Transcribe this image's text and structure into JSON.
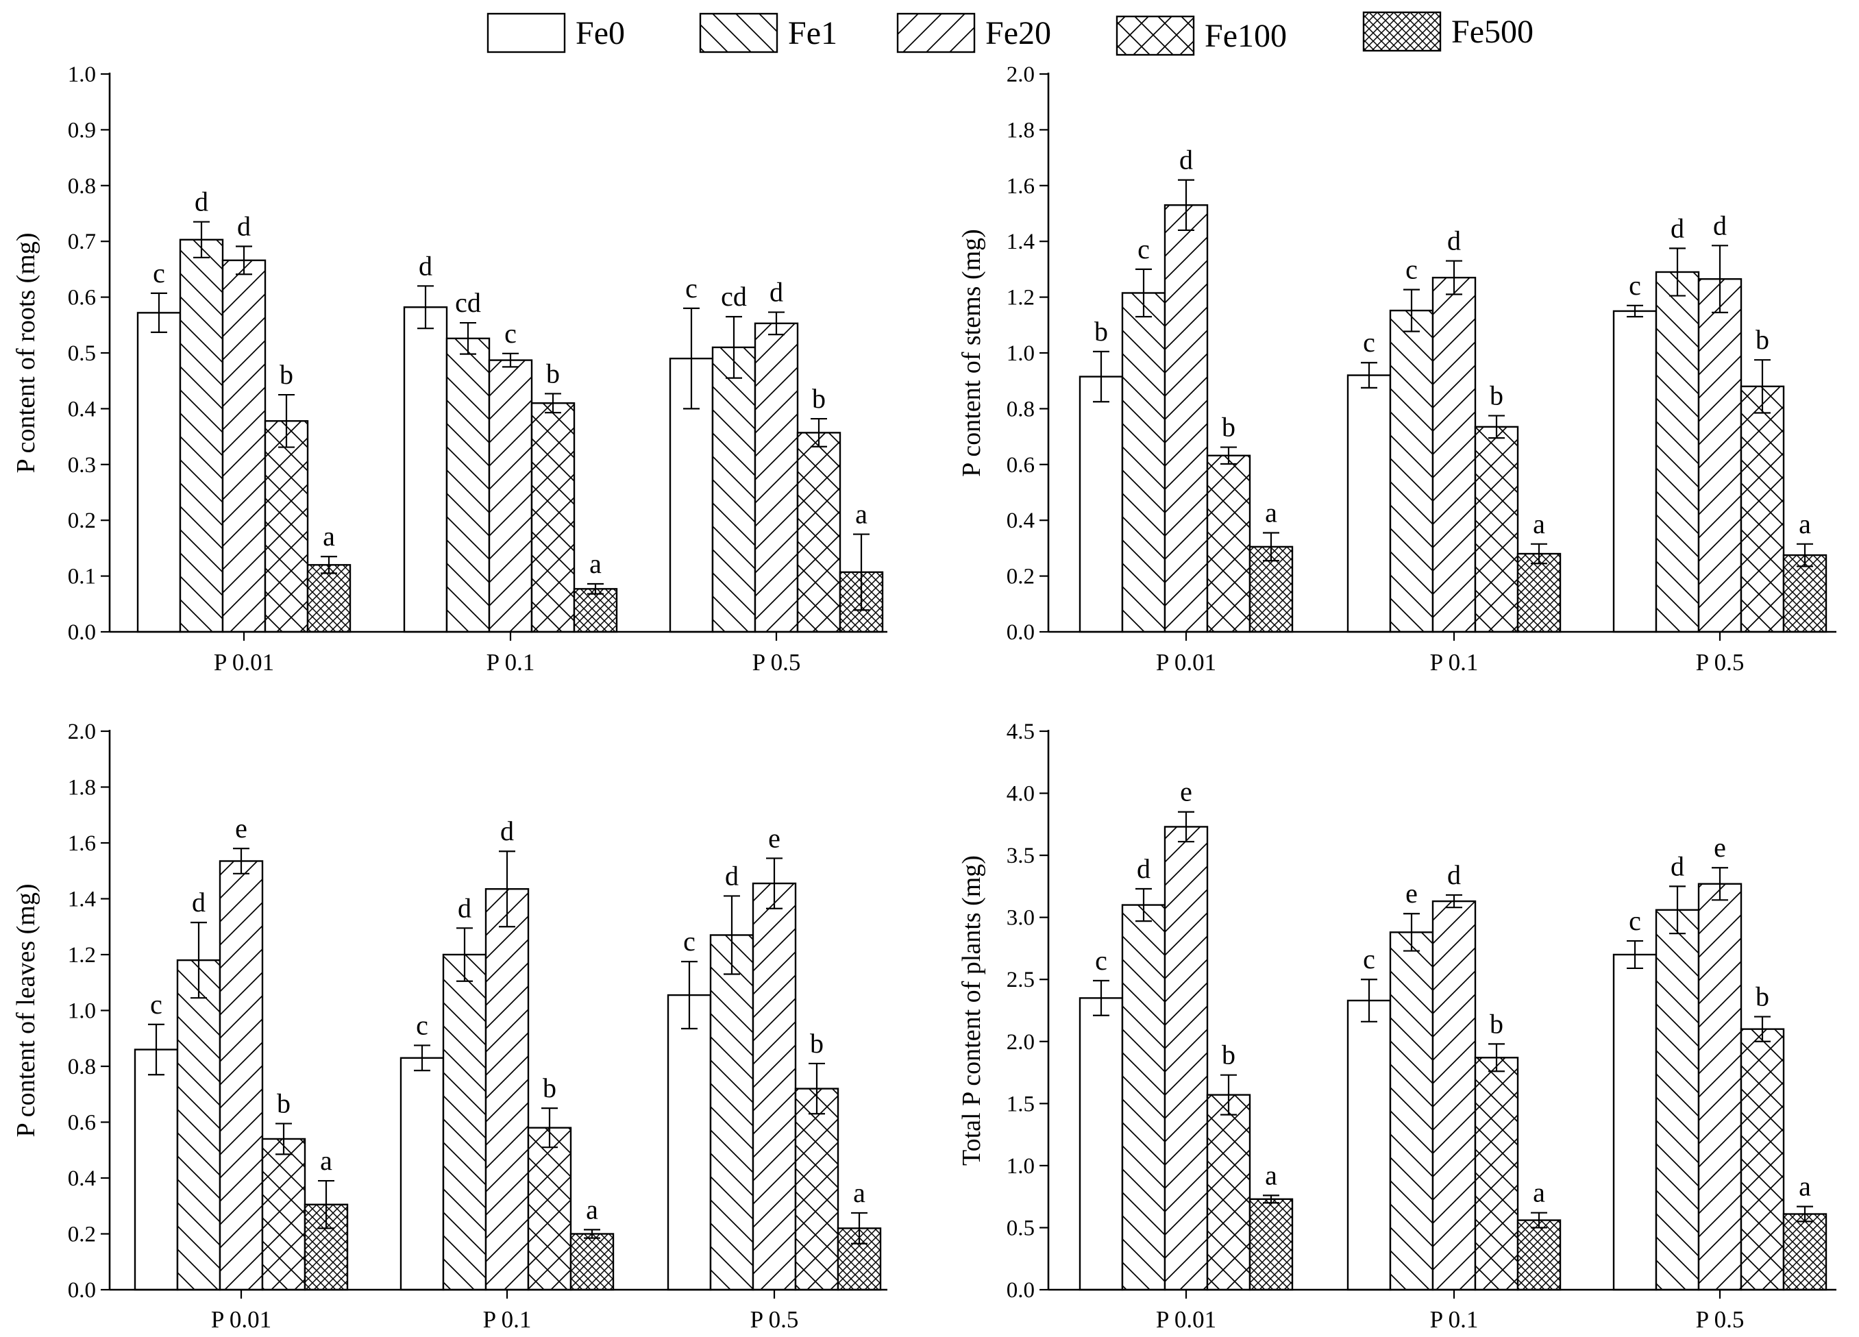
{
  "legend": [
    {
      "name": "Fe0",
      "pattern": "pat-none"
    },
    {
      "name": "Fe1",
      "pattern": "pat-back"
    },
    {
      "name": "Fe20",
      "pattern": "pat-fwd"
    },
    {
      "name": "Fe100",
      "pattern": "pat-cross"
    },
    {
      "name": "Fe500",
      "pattern": "pat-dense"
    }
  ],
  "chart_data": [
    {
      "type": "bar",
      "title": "",
      "xlabel": "",
      "ylabel": "P content of roots (mg)",
      "ylim": [
        0,
        1.0
      ],
      "yticks": [
        0.0,
        0.1,
        0.2,
        0.3,
        0.4,
        0.5,
        0.6,
        0.7,
        0.8,
        0.9,
        1.0
      ],
      "tick_decimals": 1,
      "categories": [
        "P 0.01",
        "P 0.1",
        "P 0.5"
      ],
      "series": [
        {
          "name": "Fe0",
          "values": [
            0.572,
            0.582,
            0.49
          ],
          "errors": [
            0.035,
            0.038,
            0.09
          ],
          "letters": [
            "c",
            "d",
            "c"
          ]
        },
        {
          "name": "Fe1",
          "values": [
            0.703,
            0.526,
            0.51
          ],
          "errors": [
            0.032,
            0.028,
            0.055
          ],
          "letters": [
            "d",
            "cd",
            "cd"
          ]
        },
        {
          "name": "Fe20",
          "values": [
            0.666,
            0.487,
            0.553
          ],
          "errors": [
            0.025,
            0.012,
            0.02
          ],
          "letters": [
            "d",
            "c",
            "d"
          ]
        },
        {
          "name": "Fe100",
          "values": [
            0.378,
            0.41,
            0.357
          ],
          "errors": [
            0.047,
            0.017,
            0.025
          ],
          "letters": [
            "b",
            "b",
            "b"
          ]
        },
        {
          "name": "Fe500",
          "values": [
            0.12,
            0.077,
            0.107
          ],
          "errors": [
            0.015,
            0.009,
            0.068
          ],
          "letters": [
            "a",
            "a",
            "a"
          ]
        }
      ]
    },
    {
      "type": "bar",
      "title": "",
      "xlabel": "",
      "ylabel": "P content of stems (mg)",
      "ylim": [
        0,
        2.0
      ],
      "yticks": [
        0.0,
        0.2,
        0.4,
        0.6,
        0.8,
        1.0,
        1.2,
        1.4,
        1.6,
        1.8,
        2.0
      ],
      "tick_decimals": 1,
      "categories": [
        "P 0.01",
        "P 0.1",
        "P 0.5"
      ],
      "series": [
        {
          "name": "Fe0",
          "values": [
            0.915,
            0.92,
            1.15
          ],
          "errors": [
            0.09,
            0.045,
            0.02
          ],
          "letters": [
            "b",
            "c",
            "c"
          ]
        },
        {
          "name": "Fe1",
          "values": [
            1.215,
            1.152,
            1.29
          ],
          "errors": [
            0.085,
            0.075,
            0.085
          ],
          "letters": [
            "c",
            "c",
            "d"
          ]
        },
        {
          "name": "Fe20",
          "values": [
            1.53,
            1.27,
            1.265
          ],
          "errors": [
            0.09,
            0.06,
            0.12
          ],
          "letters": [
            "d",
            "d",
            "d"
          ]
        },
        {
          "name": "Fe100",
          "values": [
            0.632,
            0.735,
            0.88
          ],
          "errors": [
            0.03,
            0.04,
            0.095
          ],
          "letters": [
            "b",
            "b",
            "b"
          ]
        },
        {
          "name": "Fe500",
          "values": [
            0.305,
            0.28,
            0.275
          ],
          "errors": [
            0.05,
            0.035,
            0.04
          ],
          "letters": [
            "a",
            "a",
            "a"
          ]
        }
      ]
    },
    {
      "type": "bar",
      "title": "",
      "xlabel": "",
      "ylabel": "P content of leaves (mg)",
      "ylim": [
        0,
        2.0
      ],
      "yticks": [
        0.0,
        0.2,
        0.4,
        0.6,
        0.8,
        1.0,
        1.2,
        1.4,
        1.6,
        1.8,
        2.0
      ],
      "tick_decimals": 1,
      "categories": [
        "P 0.01",
        "P 0.1",
        "P 0.5"
      ],
      "series": [
        {
          "name": "Fe0",
          "values": [
            0.86,
            0.83,
            1.055
          ],
          "errors": [
            0.09,
            0.045,
            0.12
          ],
          "letters": [
            "c",
            "c",
            "c"
          ]
        },
        {
          "name": "Fe1",
          "values": [
            1.18,
            1.2,
            1.27
          ],
          "errors": [
            0.135,
            0.095,
            0.14
          ],
          "letters": [
            "d",
            "d",
            "d"
          ]
        },
        {
          "name": "Fe20",
          "values": [
            1.535,
            1.435,
            1.455
          ],
          "errors": [
            0.045,
            0.135,
            0.09
          ],
          "letters": [
            "e",
            "d",
            "e"
          ]
        },
        {
          "name": "Fe100",
          "values": [
            0.54,
            0.58,
            0.72
          ],
          "errors": [
            0.055,
            0.07,
            0.09
          ],
          "letters": [
            "b",
            "b",
            "b"
          ]
        },
        {
          "name": "Fe500",
          "values": [
            0.305,
            0.2,
            0.22
          ],
          "errors": [
            0.085,
            0.015,
            0.055
          ],
          "letters": [
            "a",
            "a",
            "a"
          ]
        }
      ]
    },
    {
      "type": "bar",
      "title": "",
      "xlabel": "",
      "ylabel": "Total P content of plants (mg)",
      "ylim": [
        0,
        4.5
      ],
      "yticks": [
        0.0,
        0.5,
        1.0,
        1.5,
        2.0,
        2.5,
        3.0,
        3.5,
        4.0,
        4.5
      ],
      "tick_decimals": 1,
      "categories": [
        "P 0.01",
        "P 0.1",
        "P 0.5"
      ],
      "series": [
        {
          "name": "Fe0",
          "values": [
            2.35,
            2.33,
            2.7
          ],
          "errors": [
            0.14,
            0.17,
            0.11
          ],
          "letters": [
            "c",
            "c",
            "c"
          ]
        },
        {
          "name": "Fe1",
          "values": [
            3.1,
            2.88,
            3.06
          ],
          "errors": [
            0.13,
            0.15,
            0.19
          ],
          "letters": [
            "d",
            "e",
            "d"
          ]
        },
        {
          "name": "Fe20",
          "values": [
            3.73,
            3.13,
            3.27
          ],
          "errors": [
            0.12,
            0.05,
            0.13
          ],
          "letters": [
            "e",
            "d",
            "e"
          ]
        },
        {
          "name": "Fe100",
          "values": [
            1.57,
            1.87,
            2.1
          ],
          "errors": [
            0.16,
            0.11,
            0.1
          ],
          "letters": [
            "b",
            "b",
            "b"
          ]
        },
        {
          "name": "Fe500",
          "values": [
            0.73,
            0.56,
            0.61
          ],
          "errors": [
            0.03,
            0.06,
            0.06
          ],
          "letters": [
            "a",
            "a",
            "a"
          ]
        }
      ]
    }
  ]
}
